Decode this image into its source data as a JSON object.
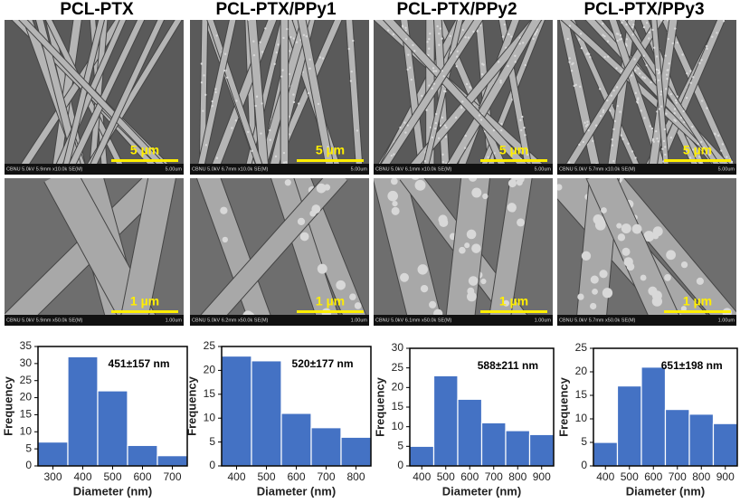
{
  "columns": [
    "PCL-PTX",
    "PCL-PTX/PPy1",
    "PCL-PTX/PPy2",
    "PCL-PTX/PPy3"
  ],
  "images": [
    [
      {
        "info": "CBNU 5.0kV 5.9mm x10.0k SE(M)",
        "info_scale": "5.00um",
        "scale": "5 µm"
      },
      {
        "info": "CBNU 5.0kV 6.7mm x10.0k SE(M)",
        "info_scale": "5.00um",
        "scale": "5 µm"
      },
      {
        "info": "CBNU 5.0kV 6.1mm x10.0k SE(M)",
        "info_scale": "5.00um",
        "scale": "5 µm"
      },
      {
        "info": "CBNU 5.0kV 5.7mm x10.0k SE(M)",
        "info_scale": "5.00um",
        "scale": "5 µm"
      }
    ],
    [
      {
        "info": "CBNU 5.0kV 5.9mm x50.0k SE(M)",
        "info_scale": "1.00um",
        "scale": "1 µm"
      },
      {
        "info": "CBNU 5.0kV 6.2mm x50.0k SE(M)",
        "info_scale": "1.00um",
        "scale": "1 µm"
      },
      {
        "info": "CBNU 5.0kV 6.1mm x50.0k SE(M)",
        "info_scale": "1.00um",
        "scale": "1 µm"
      },
      {
        "info": "CBNU 5.0kV 5.7mm x50.0k SE(M)",
        "info_scale": "1.00um",
        "scale": "1 µm"
      }
    ]
  ],
  "chart_data": [
    {
      "type": "histogram",
      "annotation": "451±157 nm",
      "x_label": "Diameter (nm)",
      "y_label": "Frequency",
      "color": "#4472c4",
      "bins": [
        250,
        350,
        450,
        550,
        650,
        750
      ],
      "values": [
        7,
        32,
        22,
        6,
        3
      ],
      "xlim": [
        250,
        750
      ],
      "xticks": [
        300,
        400,
        500,
        600,
        700
      ],
      "ylim": [
        0,
        35
      ],
      "yticks": [
        0,
        5,
        10,
        15,
        20,
        25,
        30,
        35
      ]
    },
    {
      "type": "histogram",
      "annotation": "520±177 nm",
      "x_label": "Diameter (nm)",
      "y_label": "Frequency",
      "color": "#4472c4",
      "bins": [
        350,
        450,
        550,
        650,
        750,
        850
      ],
      "values": [
        23,
        22,
        11,
        8,
        6
      ],
      "xlim": [
        350,
        850
      ],
      "xticks": [
        400,
        500,
        600,
        700,
        800
      ],
      "ylim": [
        0,
        25
      ],
      "yticks": [
        0,
        5,
        10,
        15,
        20,
        25
      ]
    },
    {
      "type": "histogram",
      "annotation": "588±211 nm",
      "x_label": "Diameter (nm)",
      "y_label": "Frequency",
      "color": "#4472c4",
      "bins": [
        350,
        450,
        550,
        650,
        750,
        850,
        950
      ],
      "values": [
        5,
        23,
        17,
        11,
        9,
        8
      ],
      "xlim": [
        350,
        950
      ],
      "xticks": [
        400,
        500,
        600,
        700,
        800,
        900
      ],
      "ylim": [
        0,
        30
      ],
      "yticks": [
        0,
        5,
        10,
        15,
        20,
        25,
        30
      ]
    },
    {
      "type": "histogram",
      "annotation": "651±198 nm",
      "x_label": "Diameter (nm)",
      "y_label": "Frequency",
      "color": "#4472c4",
      "bins": [
        350,
        450,
        550,
        650,
        750,
        850,
        950
      ],
      "values": [
        5,
        17,
        21,
        12,
        11,
        9
      ],
      "xlim": [
        350,
        950
      ],
      "xticks": [
        400,
        500,
        600,
        700,
        800,
        900
      ],
      "ylim": [
        0,
        25
      ],
      "yticks": [
        0,
        5,
        10,
        15,
        20,
        25
      ]
    }
  ]
}
